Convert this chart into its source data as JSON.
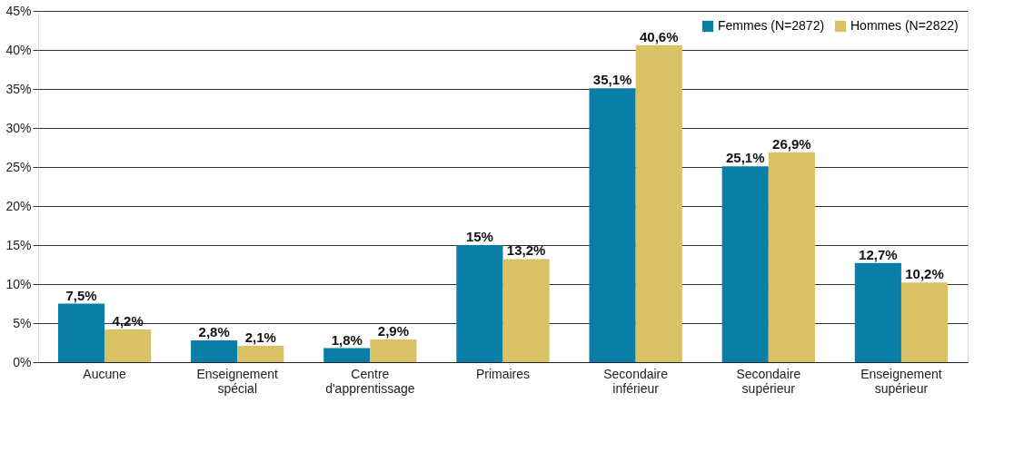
{
  "chart_data": {
    "type": "bar",
    "categories": [
      "Aucune",
      "Enseignement spécial",
      "Centre d'apprentissage",
      "Primaires",
      "Secondaire inférieur",
      "Secondaire supérieur",
      "Enseignement supérieur"
    ],
    "series": [
      {
        "name": "Femmes (N=2872)",
        "color": "#0a7ea6",
        "values": [
          7.5,
          2.8,
          1.8,
          15,
          35.1,
          25.1,
          12.7
        ],
        "value_labels": [
          "7,5%",
          "2,8%",
          "1,8%",
          "15%",
          "35,1%",
          "25,1%",
          "12,7%"
        ]
      },
      {
        "name": "Hommes (N=2822)",
        "color": "#d9c266",
        "values": [
          4.2,
          2.1,
          2.9,
          13.2,
          40.6,
          26.9,
          10.2
        ],
        "value_labels": [
          "4,2%",
          "2,1%",
          "2,9%",
          "13,2%",
          "40,6%",
          "26,9%",
          "10,2%"
        ]
      }
    ],
    "ylim": [
      0,
      45
    ],
    "yticks": [
      {
        "value": 0,
        "label": "0%"
      },
      {
        "value": 5,
        "label": "5%"
      },
      {
        "value": 10,
        "label": "10%"
      },
      {
        "value": 15,
        "label": "15%"
      },
      {
        "value": 20,
        "label": "20%"
      },
      {
        "value": 25,
        "label": "25%"
      },
      {
        "value": 30,
        "label": "30%"
      },
      {
        "value": 35,
        "label": "35%"
      },
      {
        "value": 40,
        "label": "40%"
      },
      {
        "value": 45,
        "label": "45%"
      }
    ],
    "grid": "y",
    "legend": "top right"
  }
}
